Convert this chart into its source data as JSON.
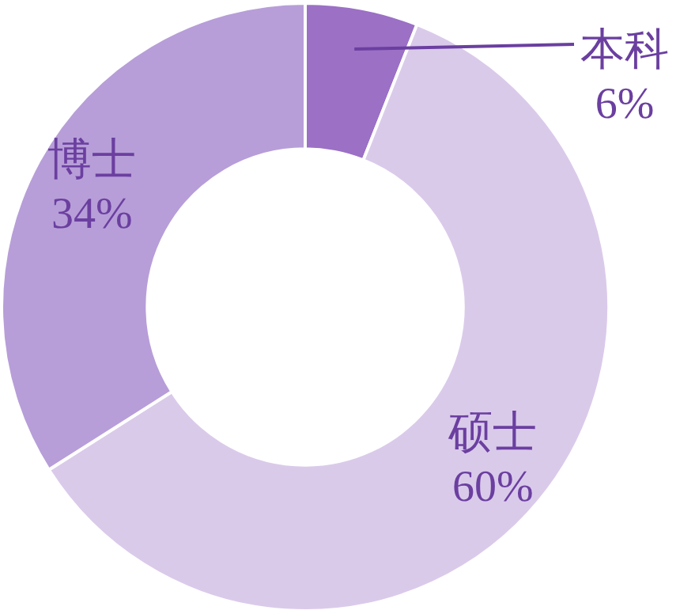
{
  "chart_data": {
    "type": "donut",
    "categories": [
      "本科",
      "硕士",
      "博士"
    ],
    "values": [
      6,
      60,
      34
    ],
    "colors": [
      "#9b70c5",
      "#dacaea",
      "#b79ed8"
    ],
    "value_labels": [
      "6%",
      "60%",
      "34%"
    ],
    "legend": false
  }
}
